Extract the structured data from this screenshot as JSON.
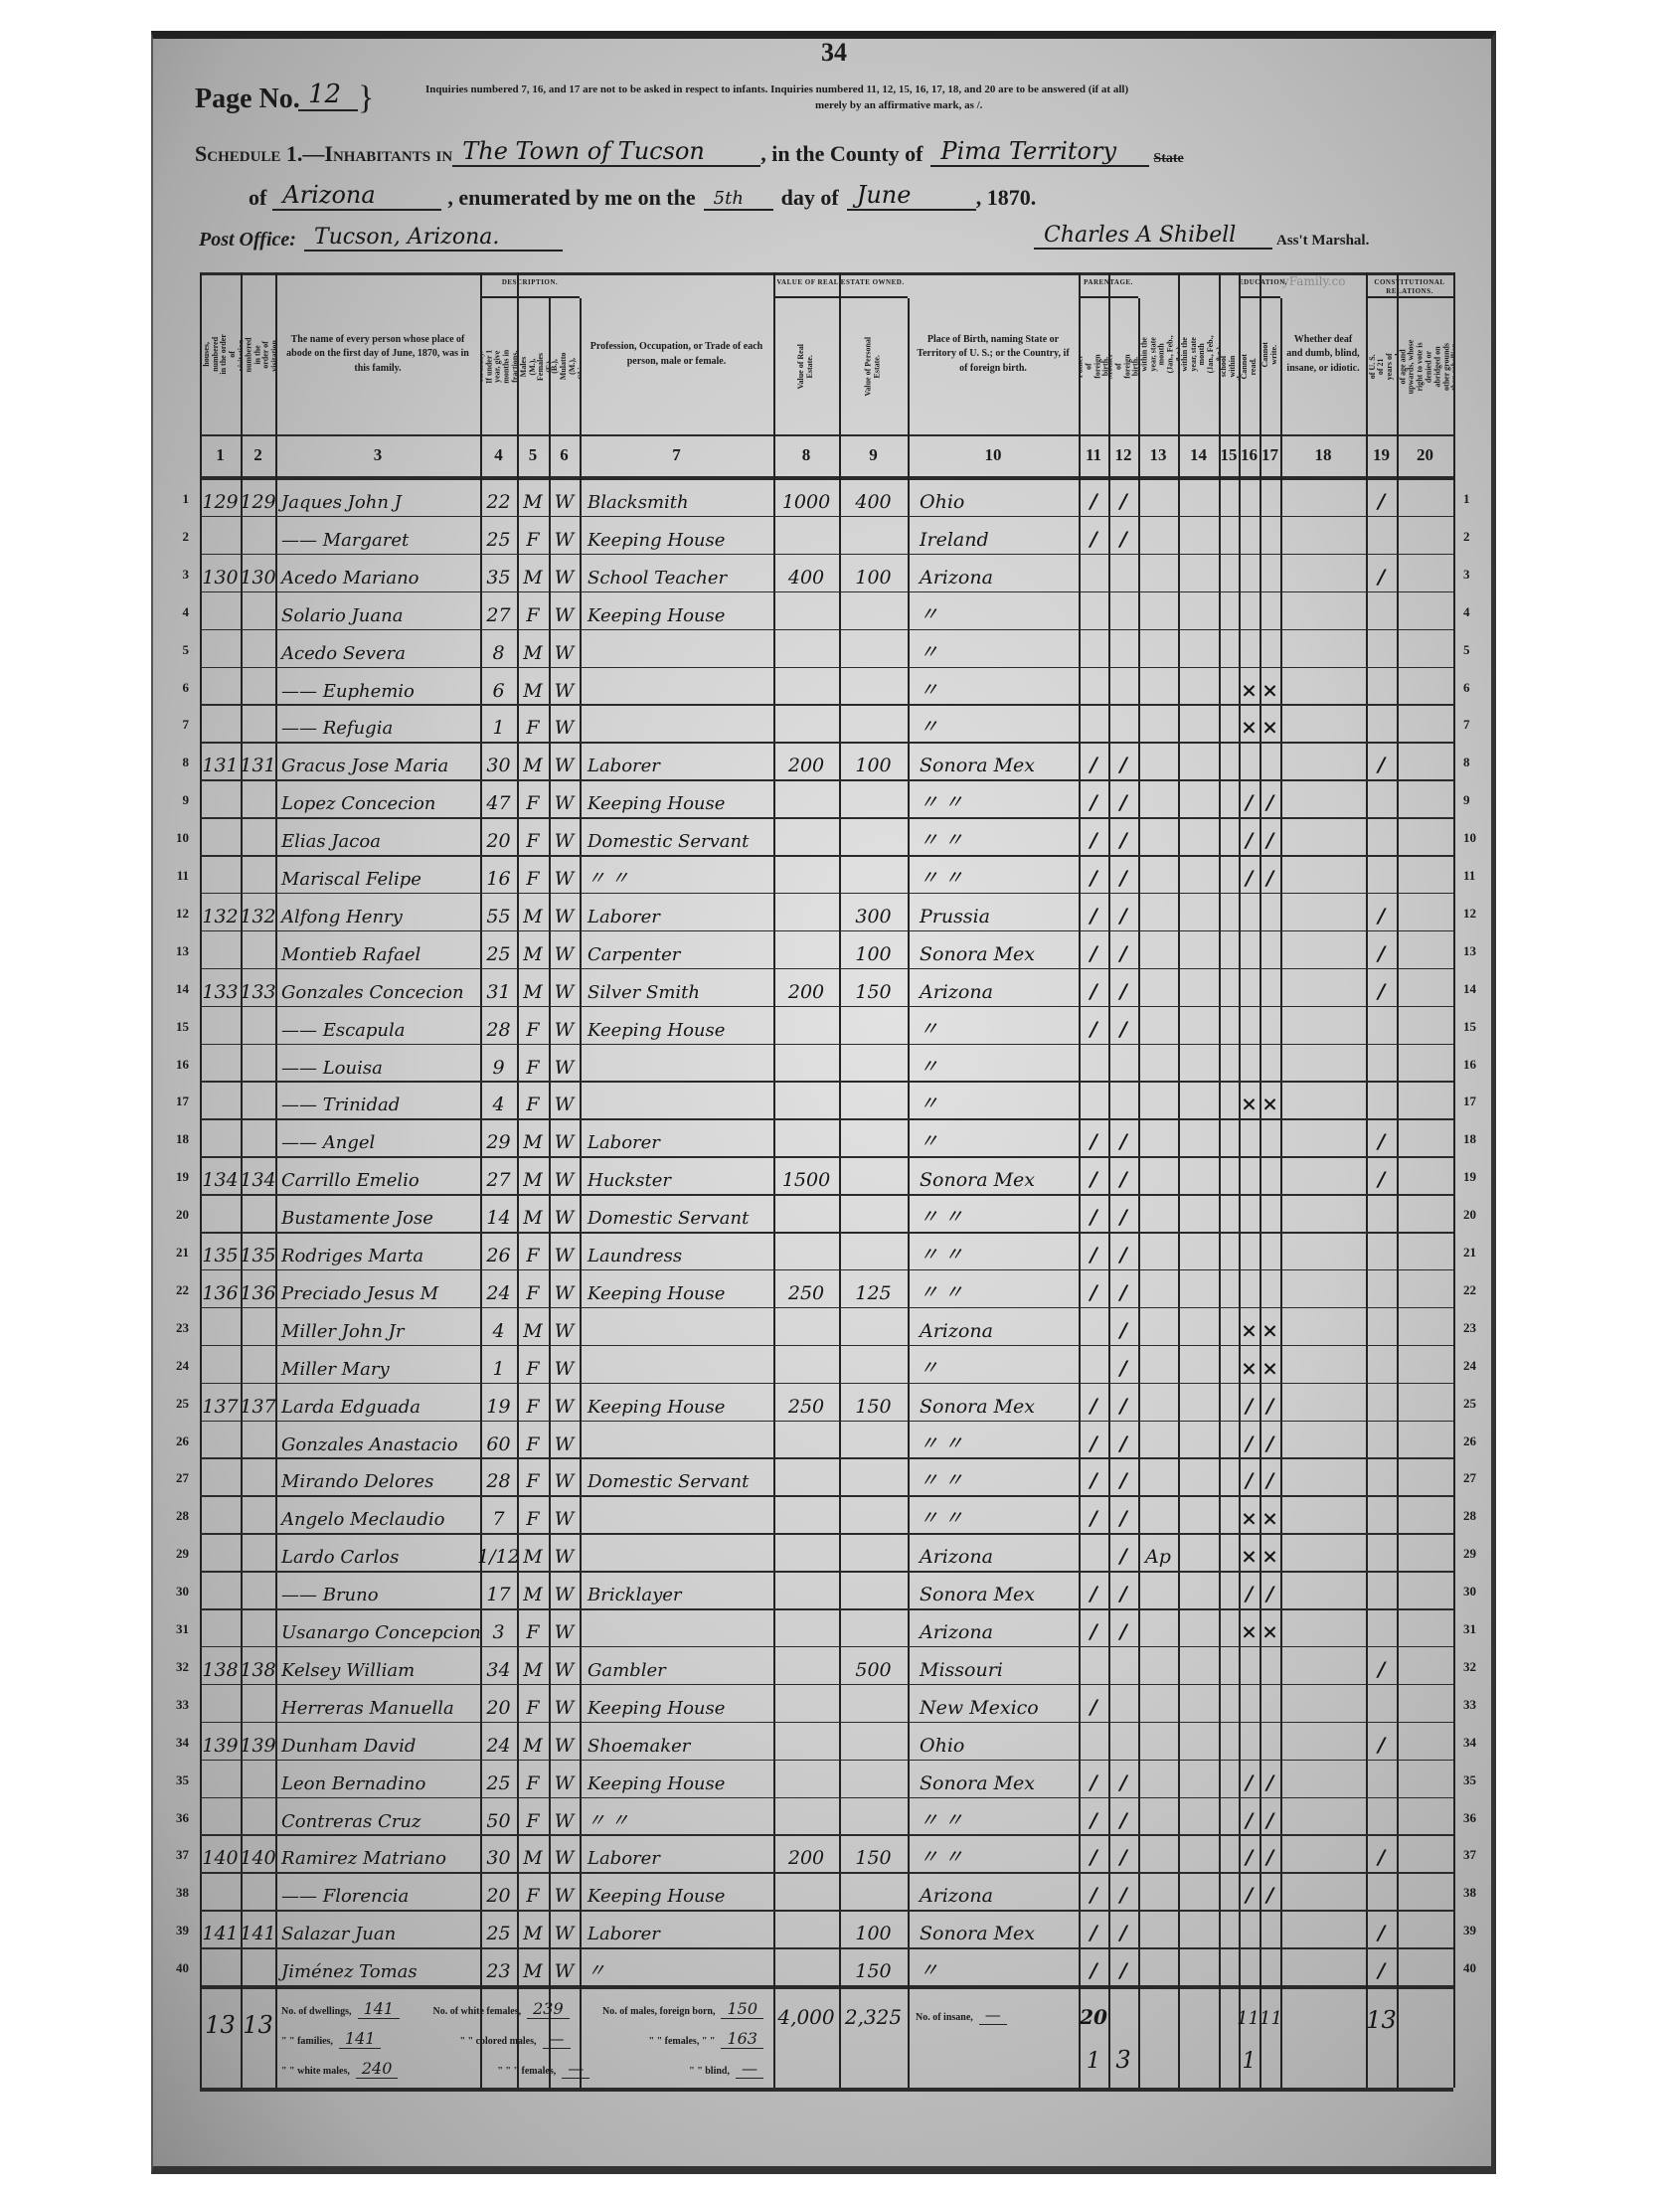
{
  "header": {
    "stamp_number": "34",
    "page_label": "Page No.",
    "page_number": "12",
    "notice_line1": "Inquiries numbered 7, 16, and 17 are not to be asked in respect to infants. Inquiries numbered 11, 12, 15, 16, 17, 18, and 20 are to be answered (if at all)",
    "notice_line2": "merely by an affirmative mark, as /.",
    "schedule_label": "Schedule 1.—Inhabitants in",
    "place": "The Town of Tucson",
    "county_label": ", in the County of",
    "county": "Pima Territory",
    "state_struck": "State",
    "of_label": "of",
    "state": "Arizona",
    "enumerated_label": ", enumerated by me on the",
    "day": "5th",
    "day_of_label": "day of",
    "month": "June",
    "year_label": ", 1870.",
    "post_office_label": "Post Office:",
    "post_office": "Tucson, Arizona.",
    "marshal_signature": "Charles A Shibell",
    "marshal_label": "Ass't Marshal.",
    "watermark": "yFamily.co"
  },
  "column_groups": {
    "description": "Description.",
    "real_estate": "Value of Real Estate Owned.",
    "parentage": "Parentage.",
    "education": "Education.",
    "constitutional": "Constitutional Relations."
  },
  "columns": [
    "Dwelling-houses, numbered in the order of visitation.",
    "Families, numbered in the order of visitation.",
    "The name of every person whose place of abode on the first day of June, 1870, was in this family.",
    "Age at last birthday. If under 1 year, give months in fractions, thus, 3/12.",
    "Sex.—Males (M.), Females (F.)",
    "Color.—White (W.), Black (B.), Mulatto (M.), Chinese (C.), Indian (I.)",
    "Profession, Occupation, or Trade of each person, male or female.",
    "Value of Real Estate.",
    "Value of Personal Estate.",
    "Place of Birth, naming State or Territory of U. S.; or the Country, if of foreign birth.",
    "Father of foreign birth.",
    "Mother of foreign birth.",
    "If born within the year, state month (Jan., Feb., &c.)",
    "If married within the year, state month (Jan., Feb., &c.)",
    "Attended school within the year.",
    "Cannot read.",
    "Cannot write.",
    "Whether deaf and dumb, blind, insane, or idiotic.",
    "Male Citizens of U. S. of 21 years of age and upwards.",
    "Male Citizens of U. S. of 21 years of age and upwards, whose right to vote is denied or abridged on other grounds than rebellion or other crime."
  ],
  "column_numbers": [
    "1",
    "2",
    "3",
    "4",
    "5",
    "6",
    "7",
    "8",
    "9",
    "10",
    "11",
    "12",
    "13",
    "14",
    "15",
    "16",
    "17",
    "18",
    "19",
    "20"
  ],
  "row_numbers": [
    "1",
    "2",
    "3",
    "4",
    "5",
    "6",
    "7",
    "8",
    "9",
    "10",
    "11",
    "12",
    "13",
    "14",
    "15",
    "16",
    "17",
    "18",
    "19",
    "20",
    "21",
    "22",
    "23",
    "24",
    "25",
    "26",
    "27",
    "28",
    "29",
    "30",
    "31",
    "32",
    "33",
    "34",
    "35",
    "36",
    "37",
    "38",
    "39",
    "40"
  ],
  "rows": [
    [
      "129",
      "129",
      "Jaques John J",
      "22",
      "M",
      "W",
      "Blacksmith",
      "1000",
      "400",
      "Ohio",
      "/",
      "/",
      "",
      "",
      "",
      "",
      "",
      "",
      "/",
      ""
    ],
    [
      "",
      "",
      "—— Margaret",
      "25",
      "F",
      "W",
      "Keeping House",
      "",
      "",
      "Ireland",
      "/",
      "/",
      "",
      "",
      "",
      "",
      "",
      "",
      "",
      ""
    ],
    [
      "130",
      "130",
      "Acedo Mariano",
      "35",
      "M",
      "W",
      "School Teacher",
      "400",
      "100",
      "Arizona",
      "",
      "",
      "",
      "",
      "",
      "",
      "",
      "",
      "/",
      ""
    ],
    [
      "",
      "",
      "Solario Juana",
      "27",
      "F",
      "W",
      "Keeping House",
      "",
      "",
      "〃",
      "",
      "",
      "",
      "",
      "",
      "",
      "",
      "",
      "",
      ""
    ],
    [
      "",
      "",
      "Acedo Severa",
      "8",
      "M",
      "W",
      "",
      "",
      "",
      "〃",
      "",
      "",
      "",
      "",
      "",
      "",
      "",
      "",
      "",
      ""
    ],
    [
      "",
      "",
      "—— Euphemio",
      "6",
      "M",
      "W",
      "",
      "",
      "",
      "〃",
      "",
      "",
      "",
      "",
      "",
      "×",
      "×",
      "",
      "",
      ""
    ],
    [
      "",
      "",
      "—— Refugia",
      "1",
      "F",
      "W",
      "",
      "",
      "",
      "〃",
      "",
      "",
      "",
      "",
      "",
      "×",
      "×",
      "",
      "",
      ""
    ],
    [
      "131",
      "131",
      "Gracus Jose Maria",
      "30",
      "M",
      "W",
      "Laborer",
      "200",
      "100",
      "Sonora Mex",
      "/",
      "/",
      "",
      "",
      "",
      "",
      "",
      "",
      "/",
      ""
    ],
    [
      "",
      "",
      "Lopez Concecion",
      "47",
      "F",
      "W",
      "Keeping House",
      "",
      "",
      "〃   〃",
      "/",
      "/",
      "",
      "",
      "",
      "/",
      "/",
      "",
      "",
      ""
    ],
    [
      "",
      "",
      "Elias Jacoa",
      "20",
      "F",
      "W",
      "Domestic Servant",
      "",
      "",
      "〃   〃",
      "/",
      "/",
      "",
      "",
      "",
      "/",
      "/",
      "",
      "",
      ""
    ],
    [
      "",
      "",
      "Mariscal Felipe",
      "16",
      "F",
      "W",
      "〃    〃",
      "",
      "",
      "〃   〃",
      "/",
      "/",
      "",
      "",
      "",
      "/",
      "/",
      "",
      "",
      ""
    ],
    [
      "132",
      "132",
      "Alfong Henry",
      "55",
      "M",
      "W",
      "Laborer",
      "",
      "300",
      "Prussia",
      "/",
      "/",
      "",
      "",
      "",
      "",
      "",
      "",
      "/",
      ""
    ],
    [
      "",
      "",
      "Montieb Rafael",
      "25",
      "M",
      "W",
      "Carpenter",
      "",
      "100",
      "Sonora Mex",
      "/",
      "/",
      "",
      "",
      "",
      "",
      "",
      "",
      "/",
      ""
    ],
    [
      "133",
      "133",
      "Gonzales Concecion",
      "31",
      "M",
      "W",
      "Silver Smith",
      "200",
      "150",
      "Arizona",
      "/",
      "/",
      "",
      "",
      "",
      "",
      "",
      "",
      "/",
      ""
    ],
    [
      "",
      "",
      "—— Escapula",
      "28",
      "F",
      "W",
      "Keeping House",
      "",
      "",
      "〃",
      "/",
      "/",
      "",
      "",
      "",
      "",
      "",
      "",
      "",
      ""
    ],
    [
      "",
      "",
      "—— Louisa",
      "9",
      "F",
      "W",
      "",
      "",
      "",
      "〃",
      "",
      "",
      "",
      "",
      "",
      "",
      "",
      "",
      "",
      ""
    ],
    [
      "",
      "",
      "—— Trinidad",
      "4",
      "F",
      "W",
      "",
      "",
      "",
      "〃",
      "",
      "",
      "",
      "",
      "",
      "×",
      "×",
      "",
      "",
      ""
    ],
    [
      "",
      "",
      "—— Angel",
      "29",
      "M",
      "W",
      "Laborer",
      "",
      "",
      "〃",
      "/",
      "/",
      "",
      "",
      "",
      "",
      "",
      "",
      "/",
      ""
    ],
    [
      "134",
      "134",
      "Carrillo Emelio",
      "27",
      "M",
      "W",
      "Huckster",
      "1500",
      "",
      "Sonora Mex",
      "/",
      "/",
      "",
      "",
      "",
      "",
      "",
      "",
      "/",
      ""
    ],
    [
      "",
      "",
      "Bustamente Jose",
      "14",
      "M",
      "W",
      "Domestic Servant",
      "",
      "",
      "〃   〃",
      "/",
      "/",
      "",
      "",
      "",
      "",
      "",
      "",
      "",
      ""
    ],
    [
      "135",
      "135",
      "Rodriges Marta",
      "26",
      "F",
      "W",
      "Laundress",
      "",
      "",
      "〃   〃",
      "/",
      "/",
      "",
      "",
      "",
      "",
      "",
      "",
      "",
      ""
    ],
    [
      "136",
      "136",
      "Preciado Jesus M",
      "24",
      "F",
      "W",
      "Keeping House",
      "250",
      "125",
      "〃   〃",
      "/",
      "/",
      "",
      "",
      "",
      "",
      "",
      "",
      "",
      ""
    ],
    [
      "",
      "",
      "Miller John Jr",
      "4",
      "M",
      "W",
      "",
      "",
      "",
      "Arizona",
      "",
      "/",
      "",
      "",
      "",
      "×",
      "×",
      "",
      "",
      ""
    ],
    [
      "",
      "",
      "Miller Mary",
      "1",
      "F",
      "W",
      "",
      "",
      "",
      "〃",
      "",
      "/",
      "",
      "",
      "",
      "×",
      "×",
      "",
      "",
      ""
    ],
    [
      "137",
      "137",
      "Larda Edguada",
      "19",
      "F",
      "W",
      "Keeping House",
      "250",
      "150",
      "Sonora Mex",
      "/",
      "/",
      "",
      "",
      "",
      "/",
      "/",
      "",
      "",
      ""
    ],
    [
      "",
      "",
      "Gonzales Anastacio",
      "60",
      "F",
      "W",
      "",
      "",
      "",
      "〃   〃",
      "/",
      "/",
      "",
      "",
      "",
      "/",
      "/",
      "",
      "",
      ""
    ],
    [
      "",
      "",
      "Mirando Delores",
      "28",
      "F",
      "W",
      "Domestic Servant",
      "",
      "",
      "〃   〃",
      "/",
      "/",
      "",
      "",
      "",
      "/",
      "/",
      "",
      "",
      ""
    ],
    [
      "",
      "",
      "Angelo Meclaudio",
      "7",
      "F",
      "W",
      "",
      "",
      "",
      "〃   〃",
      "/",
      "/",
      "",
      "",
      "",
      "×",
      "×",
      "",
      "",
      ""
    ],
    [
      "",
      "",
      "Lardo Carlos",
      "1/12",
      "M",
      "W",
      "",
      "",
      "",
      "Arizona",
      "",
      "/",
      "Ap",
      "",
      "",
      "×",
      "×",
      "",
      "",
      ""
    ],
    [
      "",
      "",
      "—— Bruno",
      "17",
      "M",
      "W",
      "Bricklayer",
      "",
      "",
      "Sonora Mex",
      "/",
      "/",
      "",
      "",
      "",
      "/",
      "/",
      "",
      "",
      ""
    ],
    [
      "",
      "",
      "Usanargo Concepcion",
      "3",
      "F",
      "W",
      "",
      "",
      "",
      "Arizona",
      "/",
      "/",
      "",
      "",
      "",
      "×",
      "×",
      "",
      "",
      ""
    ],
    [
      "138",
      "138",
      "Kelsey William",
      "34",
      "M",
      "W",
      "Gambler",
      "",
      "500",
      "Missouri",
      "",
      "",
      "",
      "",
      "",
      "",
      "",
      "",
      "/",
      ""
    ],
    [
      "",
      "",
      "Herreras Manuella",
      "20",
      "F",
      "W",
      "Keeping House",
      "",
      "",
      "New Mexico",
      "/",
      "",
      "",
      "",
      "",
      "",
      "",
      "",
      "",
      ""
    ],
    [
      "139",
      "139",
      "Dunham David",
      "24",
      "M",
      "W",
      "Shoemaker",
      "",
      "",
      "Ohio",
      "",
      "",
      "",
      "",
      "",
      "",
      "",
      "",
      "/",
      ""
    ],
    [
      "",
      "",
      "Leon Bernadino",
      "25",
      "F",
      "W",
      "Keeping House",
      "",
      "",
      "Sonora Mex",
      "/",
      "/",
      "",
      "",
      "",
      "/",
      "/",
      "",
      "",
      ""
    ],
    [
      "",
      "",
      "Contreras Cruz",
      "50",
      "F",
      "W",
      "〃    〃",
      "",
      "",
      "〃   〃",
      "/",
      "/",
      "",
      "",
      "",
      "/",
      "/",
      "",
      "",
      ""
    ],
    [
      "140",
      "140",
      "Ramirez Matriano",
      "30",
      "M",
      "W",
      "Laborer",
      "200",
      "150",
      "〃   〃",
      "/",
      "/",
      "",
      "",
      "",
      "/",
      "/",
      "",
      "/",
      ""
    ],
    [
      "",
      "",
      "—— Florencia",
      "20",
      "F",
      "W",
      "Keeping House",
      "",
      "",
      "Arizona",
      "/",
      "/",
      "",
      "",
      "",
      "/",
      "/",
      "",
      "",
      ""
    ],
    [
      "141",
      "141",
      "Salazar Juan",
      "25",
      "M",
      "W",
      "Laborer",
      "",
      "100",
      "Sonora Mex",
      "/",
      "/",
      "",
      "",
      "",
      "",
      "",
      "",
      "/",
      ""
    ],
    [
      "",
      "",
      "Jiménez Tomas",
      "23",
      "M",
      "W",
      "〃",
      "",
      "150",
      "〃",
      "/",
      "/",
      "",
      "",
      "",
      "",
      "",
      "",
      "/",
      ""
    ]
  ],
  "totals": {
    "dwellings_total": "13",
    "families_total": "13",
    "summary": [
      [
        {
          "label": "No. of dwellings,",
          "value": "141"
        },
        {
          "label": "No. of white females,",
          "value": "239"
        },
        {
          "label": "No. of males, foreign born,",
          "value": "150"
        }
      ],
      [
        {
          "label": "\" \" families,",
          "value": "141"
        },
        {
          "label": "\" \" colored males,",
          "value": "—"
        },
        {
          "label": "\" \" females, \" \"",
          "value": "163"
        }
      ],
      [
        {
          "label": "\" \" white males,",
          "value": "240"
        },
        {
          "label": "\" \" \" females,",
          "value": "—"
        },
        {
          "label": "\" \" blind,",
          "value": "—"
        }
      ]
    ],
    "real_estate_total": "4,000",
    "personal_estate_total": "2,325",
    "insane_label": "No. of insane,",
    "insane_value": "—",
    "col11_top": "20",
    "col11_bottom": "1",
    "col12": "3",
    "col16_17_top": "1111",
    "col16_17_bottom": "1",
    "col19": "13"
  }
}
